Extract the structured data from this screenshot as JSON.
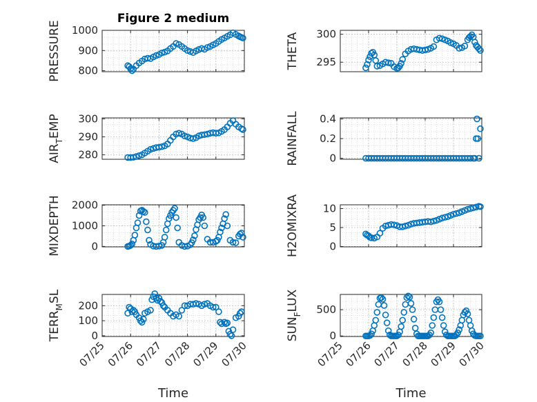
{
  "figure": {
    "title": "Figure 2 medium",
    "marker_color": "#0072BD",
    "date_ticks": [
      "07/25",
      "07/26",
      "07/27",
      "07/28",
      "07/29",
      "07/30"
    ],
    "xlabel": "Time"
  },
  "chart_data": [
    {
      "type": "scatter",
      "title": "Figure 2 medium",
      "ylabel": "PRESSURE",
      "xlim": [
        "07/25",
        "07/30"
      ],
      "ylim": [
        795,
        1000
      ],
      "yticks": [
        800,
        900,
        1000
      ],
      "grid": "on",
      "series": [
        {
          "x": [
            0.9,
            0.95,
            1.0,
            1.05,
            1.1,
            1.2,
            1.3,
            1.4,
            1.5,
            1.6,
            1.7,
            1.8,
            1.9,
            2.0,
            2.1,
            2.2,
            2.3,
            2.4,
            2.5,
            2.6,
            2.7,
            2.8,
            2.9,
            3.0,
            3.1,
            3.2,
            3.3,
            3.4,
            3.5,
            3.6,
            3.7,
            3.8,
            3.9,
            4.0,
            4.1,
            4.2,
            4.3,
            4.4,
            4.5,
            4.6,
            4.7,
            4.8,
            4.85,
            4.9,
            4.95
          ],
          "y": [
            825,
            820,
            810,
            800,
            808,
            825,
            838,
            848,
            858,
            862,
            860,
            868,
            875,
            880,
            888,
            892,
            898,
            910,
            920,
            935,
            930,
            920,
            910,
            900,
            895,
            890,
            898,
            905,
            910,
            906,
            915,
            920,
            928,
            935,
            945,
            955,
            962,
            970,
            978,
            988,
            980,
            972,
            968,
            965,
            962
          ]
        }
      ]
    },
    {
      "type": "scatter",
      "ylabel": "THETA",
      "xlim": [
        "07/25",
        "07/30"
      ],
      "ylim": [
        293.3,
        300.7
      ],
      "yticks": [
        295,
        300
      ],
      "grid": "on",
      "series": [
        {
          "x": [
            0.9,
            0.95,
            1.0,
            1.05,
            1.1,
            1.15,
            1.2,
            1.25,
            1.3,
            1.4,
            1.5,
            1.6,
            1.7,
            1.8,
            1.9,
            2.0,
            2.05,
            2.1,
            2.15,
            2.2,
            2.3,
            2.4,
            2.5,
            2.6,
            2.7,
            2.8,
            2.9,
            3.0,
            3.1,
            3.2,
            3.3,
            3.4,
            3.5,
            3.6,
            3.7,
            3.8,
            3.9,
            4.0,
            4.1,
            4.2,
            4.3,
            4.4,
            4.5,
            4.55,
            4.6,
            4.65,
            4.7,
            4.75,
            4.8,
            4.85,
            4.9,
            4.95
          ],
          "y": [
            294.0,
            294.6,
            295.4,
            296.0,
            296.6,
            296.8,
            296.3,
            295.3,
            294.3,
            294.4,
            294.7,
            295.0,
            294.9,
            294.8,
            294.2,
            293.9,
            294.0,
            294.3,
            294.8,
            295.5,
            296.5,
            297.0,
            297.3,
            297.4,
            297.3,
            297.2,
            297.1,
            297.2,
            297.3,
            297.5,
            297.8,
            299.0,
            299.3,
            299.2,
            299.0,
            298.8,
            298.5,
            298.3,
            298.0,
            297.5,
            297.6,
            297.9,
            299.0,
            299.4,
            299.6,
            299.9,
            299.5,
            298.6,
            298.0,
            297.7,
            297.4,
            297.1
          ]
        }
      ]
    },
    {
      "type": "scatter",
      "ylabel": "AIR_TEMP",
      "xlim": [
        "07/25",
        "07/30"
      ],
      "ylim": [
        277.5,
        300.5
      ],
      "yticks": [
        280,
        290,
        300
      ],
      "grid": "on",
      "series": [
        {
          "x": [
            0.9,
            1.0,
            1.1,
            1.2,
            1.3,
            1.4,
            1.5,
            1.6,
            1.7,
            1.8,
            1.9,
            2.0,
            2.1,
            2.2,
            2.3,
            2.4,
            2.5,
            2.6,
            2.7,
            2.8,
            2.9,
            3.0,
            3.1,
            3.2,
            3.3,
            3.4,
            3.5,
            3.6,
            3.7,
            3.8,
            3.9,
            4.0,
            4.1,
            4.2,
            4.3,
            4.4,
            4.5,
            4.6,
            4.7,
            4.8,
            4.9,
            4.95
          ],
          "y": [
            278.5,
            278.5,
            278.6,
            279.0,
            279.5,
            280.0,
            281.0,
            282.0,
            283.0,
            283.5,
            284.0,
            284.2,
            284.5,
            285.0,
            286.0,
            288.0,
            290.0,
            291.5,
            292.0,
            291.5,
            290.5,
            290.0,
            289.3,
            289.0,
            289.5,
            290.5,
            291.0,
            291.2,
            291.5,
            292.0,
            292.3,
            292.0,
            292.2,
            293.0,
            294.0,
            295.5,
            297.5,
            299.0,
            297.0,
            295.5,
            294.5,
            294.0
          ]
        }
      ]
    },
    {
      "type": "scatter",
      "ylabel": "RAINFALL",
      "xlim": [
        "07/25",
        "07/30"
      ],
      "ylim": [
        -0.01,
        0.41
      ],
      "yticks": [
        0,
        0.2,
        0.4
      ],
      "grid": "on",
      "series": [
        {
          "x": [
            0.9,
            1.0,
            1.1,
            1.2,
            1.3,
            1.4,
            1.5,
            1.6,
            1.7,
            1.8,
            1.9,
            2.0,
            2.1,
            2.2,
            2.3,
            2.4,
            2.5,
            2.6,
            2.7,
            2.8,
            2.9,
            3.0,
            3.1,
            3.2,
            3.3,
            3.4,
            3.5,
            3.6,
            3.7,
            3.8,
            3.9,
            4.0,
            4.1,
            4.2,
            4.3,
            4.4,
            4.5,
            4.6,
            4.7,
            4.75,
            4.8,
            4.83,
            4.86,
            4.9,
            4.95
          ],
          "y": [
            0,
            0,
            0,
            0,
            0,
            0,
            0,
            0,
            0,
            0,
            0,
            0,
            0,
            0,
            0,
            0,
            0,
            0,
            0,
            0,
            0,
            0,
            0,
            0,
            0,
            0,
            0,
            0,
            0,
            0,
            0,
            0,
            0,
            0,
            0,
            0,
            0,
            0,
            0,
            0,
            0.2,
            0.4,
            0.2,
            0,
            0.3
          ]
        }
      ]
    },
    {
      "type": "scatter",
      "ylabel": "MIXDEPTH",
      "xlim": [
        "07/25",
        "07/30"
      ],
      "ylim": [
        -20,
        2020
      ],
      "yticks": [
        0,
        1000,
        2000
      ],
      "grid": "on",
      "series": [
        {
          "x": [
            0.9,
            0.95,
            1.0,
            1.05,
            1.1,
            1.15,
            1.2,
            1.25,
            1.3,
            1.35,
            1.4,
            1.45,
            1.5,
            1.55,
            1.6,
            1.65,
            1.7,
            1.8,
            1.9,
            2.0,
            2.1,
            2.15,
            2.2,
            2.25,
            2.3,
            2.35,
            2.4,
            2.45,
            2.5,
            2.55,
            2.6,
            2.65,
            2.7,
            2.8,
            2.9,
            3.0,
            3.1,
            3.15,
            3.2,
            3.25,
            3.3,
            3.35,
            3.4,
            3.45,
            3.5,
            3.55,
            3.6,
            3.7,
            3.8,
            3.9,
            4.0,
            4.05,
            4.1,
            4.15,
            4.2,
            4.25,
            4.3,
            4.35,
            4.4,
            4.5,
            4.6,
            4.7,
            4.8,
            4.85,
            4.9,
            4.95
          ],
          "y": [
            0,
            20,
            50,
            120,
            300,
            550,
            900,
            1150,
            1500,
            1720,
            1760,
            1700,
            1650,
            1200,
            800,
            300,
            100,
            20,
            0,
            20,
            50,
            200,
            450,
            800,
            1100,
            1350,
            1500,
            1650,
            1750,
            1850,
            1400,
            900,
            200,
            50,
            0,
            20,
            80,
            180,
            320,
            520,
            820,
            1050,
            1300,
            1400,
            1530,
            1400,
            1000,
            350,
            200,
            200,
            250,
            300,
            450,
            700,
            900,
            1100,
            1350,
            1550,
            1000,
            300,
            200,
            180,
            500,
            600,
            650,
            450
          ]
        }
      ]
    },
    {
      "type": "scatter",
      "ylabel": "H2OMIXRA",
      "xlim": [
        "07/25",
        "07/30"
      ],
      "ylim": [
        -0.1,
        11
      ],
      "yticks": [
        0,
        5,
        10
      ],
      "grid": "on",
      "series": [
        {
          "x": [
            0.9,
            0.95,
            1.0,
            1.05,
            1.1,
            1.2,
            1.3,
            1.4,
            1.5,
            1.6,
            1.7,
            1.8,
            1.9,
            2.0,
            2.1,
            2.2,
            2.3,
            2.4,
            2.5,
            2.6,
            2.7,
            2.8,
            2.9,
            3.0,
            3.1,
            3.2,
            3.3,
            3.4,
            3.5,
            3.6,
            3.7,
            3.8,
            3.9,
            4.0,
            4.1,
            4.2,
            4.3,
            4.4,
            4.5,
            4.6,
            4.7,
            4.8,
            4.9,
            4.95
          ],
          "y": [
            3.3,
            3.0,
            2.8,
            2.4,
            2.3,
            2.2,
            2.5,
            3.5,
            4.8,
            5.4,
            5.6,
            5.8,
            5.7,
            5.5,
            5.2,
            5.2,
            5.4,
            5.6,
            5.9,
            6.1,
            6.2,
            6.3,
            6.4,
            6.5,
            6.6,
            6.5,
            6.7,
            6.9,
            7.2,
            7.5,
            7.7,
            7.9,
            8.2,
            8.5,
            8.7,
            8.9,
            9.2,
            9.5,
            9.8,
            10.0,
            10.2,
            10.4,
            10.6,
            10.5
          ]
        }
      ]
    },
    {
      "type": "scatter",
      "ylabel": "TERR_MSL",
      "xlim": [
        "07/25",
        "07/30"
      ],
      "ylim": [
        -5,
        275
      ],
      "yticks": [
        0,
        100,
        200
      ],
      "grid": "on",
      "series": [
        {
          "x": [
            0.9,
            0.95,
            1.0,
            1.05,
            1.1,
            1.15,
            1.2,
            1.3,
            1.35,
            1.4,
            1.45,
            1.5,
            1.6,
            1.7,
            1.75,
            1.8,
            1.85,
            1.9,
            1.95,
            2.0,
            2.05,
            2.1,
            2.15,
            2.2,
            2.3,
            2.4,
            2.5,
            2.6,
            2.7,
            2.8,
            2.9,
            3.0,
            3.1,
            3.2,
            3.3,
            3.4,
            3.5,
            3.6,
            3.7,
            3.8,
            3.9,
            4.0,
            4.1,
            4.15,
            4.2,
            4.3,
            4.35,
            4.4,
            4.45,
            4.5,
            4.55,
            4.6,
            4.7,
            4.8,
            4.85,
            4.9
          ],
          "y": [
            150,
            190,
            180,
            160,
            170,
            160,
            140,
            120,
            100,
            90,
            110,
            150,
            160,
            170,
            240,
            260,
            280,
            250,
            235,
            250,
            230,
            220,
            200,
            190,
            170,
            150,
            130,
            140,
            130,
            170,
            200,
            200,
            210,
            210,
            215,
            210,
            200,
            210,
            215,
            200,
            190,
            190,
            160,
            90,
            80,
            90,
            80,
            85,
            30,
            10,
            0,
            40,
            120,
            130,
            150,
            160
          ]
        }
      ]
    },
    {
      "type": "scatter",
      "ylabel": "SUN_FLUX",
      "xlim": [
        "07/25",
        "07/30"
      ],
      "ylim": [
        -10,
        790
      ],
      "yticks": [
        0,
        500
      ],
      "grid": "on",
      "series": [
        {
          "x": [
            0.9,
            0.95,
            1.0,
            1.05,
            1.1,
            1.15,
            1.2,
            1.25,
            1.3,
            1.35,
            1.4,
            1.45,
            1.5,
            1.55,
            1.6,
            1.65,
            1.7,
            1.75,
            1.8,
            1.85,
            1.9,
            1.95,
            2.0,
            2.05,
            2.1,
            2.15,
            2.2,
            2.25,
            2.3,
            2.35,
            2.4,
            2.45,
            2.5,
            2.55,
            2.6,
            2.65,
            2.7,
            2.75,
            2.8,
            2.85,
            2.9,
            2.95,
            3.0,
            3.05,
            3.1,
            3.15,
            3.2,
            3.25,
            3.3,
            3.35,
            3.4,
            3.45,
            3.5,
            3.55,
            3.6,
            3.65,
            3.7,
            3.75,
            3.8,
            3.85,
            3.9,
            3.95,
            4.0,
            4.05,
            4.1,
            4.15,
            4.2,
            4.25,
            4.3,
            4.35,
            4.4,
            4.45,
            4.5,
            4.55,
            4.6,
            4.65,
            4.7,
            4.75,
            4.8,
            4.85,
            4.9,
            4.95
          ],
          "y": [
            0,
            0,
            0,
            10,
            40,
            100,
            200,
            300,
            450,
            600,
            720,
            730,
            700,
            580,
            400,
            250,
            100,
            20,
            0,
            0,
            0,
            0,
            0,
            20,
            80,
            180,
            300,
            450,
            600,
            730,
            760,
            740,
            620,
            500,
            320,
            150,
            40,
            0,
            0,
            0,
            0,
            0,
            0,
            0,
            0,
            20,
            60,
            200,
            350,
            500,
            650,
            690,
            650,
            500,
            350,
            200,
            80,
            20,
            0,
            0,
            0,
            0,
            0,
            0,
            20,
            60,
            120,
            200,
            300,
            400,
            450,
            480,
            420,
            300,
            200,
            100,
            40,
            10,
            0,
            0,
            0,
            0
          ]
        }
      ]
    }
  ]
}
